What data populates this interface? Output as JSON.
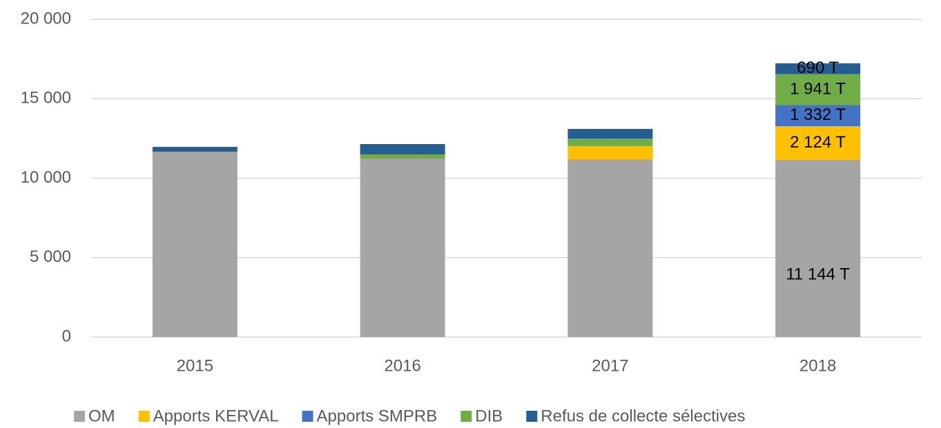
{
  "chart_data": {
    "type": "stacked_bar",
    "categories": [
      "2015",
      "2016",
      "2017",
      "2018"
    ],
    "series": [
      {
        "name": "OM",
        "color": "#a5a5a5",
        "values": [
          11670,
          11236,
          11190,
          11144
        ],
        "value_labels": [
          null,
          null,
          null,
          "11 144 T"
        ]
      },
      {
        "name": "Apports KERVAL",
        "color": "#ffc000",
        "values": [
          0,
          0,
          820,
          2124
        ],
        "value_labels": [
          null,
          null,
          null,
          "2 124 T"
        ]
      },
      {
        "name": "Apports SMPRB",
        "color": "#4472c4",
        "values": [
          0,
          0,
          0,
          1332
        ],
        "value_labels": [
          null,
          null,
          null,
          "1 332 T"
        ]
      },
      {
        "name": "DIB",
        "color": "#70ad47",
        "values": [
          0,
          260,
          480,
          1941
        ],
        "value_labels": [
          null,
          null,
          null,
          "1 941 T"
        ]
      },
      {
        "name": "Refus de collecte sélectives",
        "color": "#255e91",
        "values": [
          300,
          650,
          610,
          690
        ],
        "value_labels": [
          null,
          null,
          null,
          "690 T"
        ]
      }
    ],
    "ylim": [
      0,
      20000
    ],
    "yticks": [
      0,
      {
        "value": 5000,
        "label": "5 000"
      },
      {
        "value": 10000,
        "label": "10 000"
      },
      {
        "value": 15000,
        "label": "15 000"
      },
      {
        "value": 20000,
        "label": "20 000"
      }
    ],
    "grid": true,
    "legend": "bottom"
  }
}
